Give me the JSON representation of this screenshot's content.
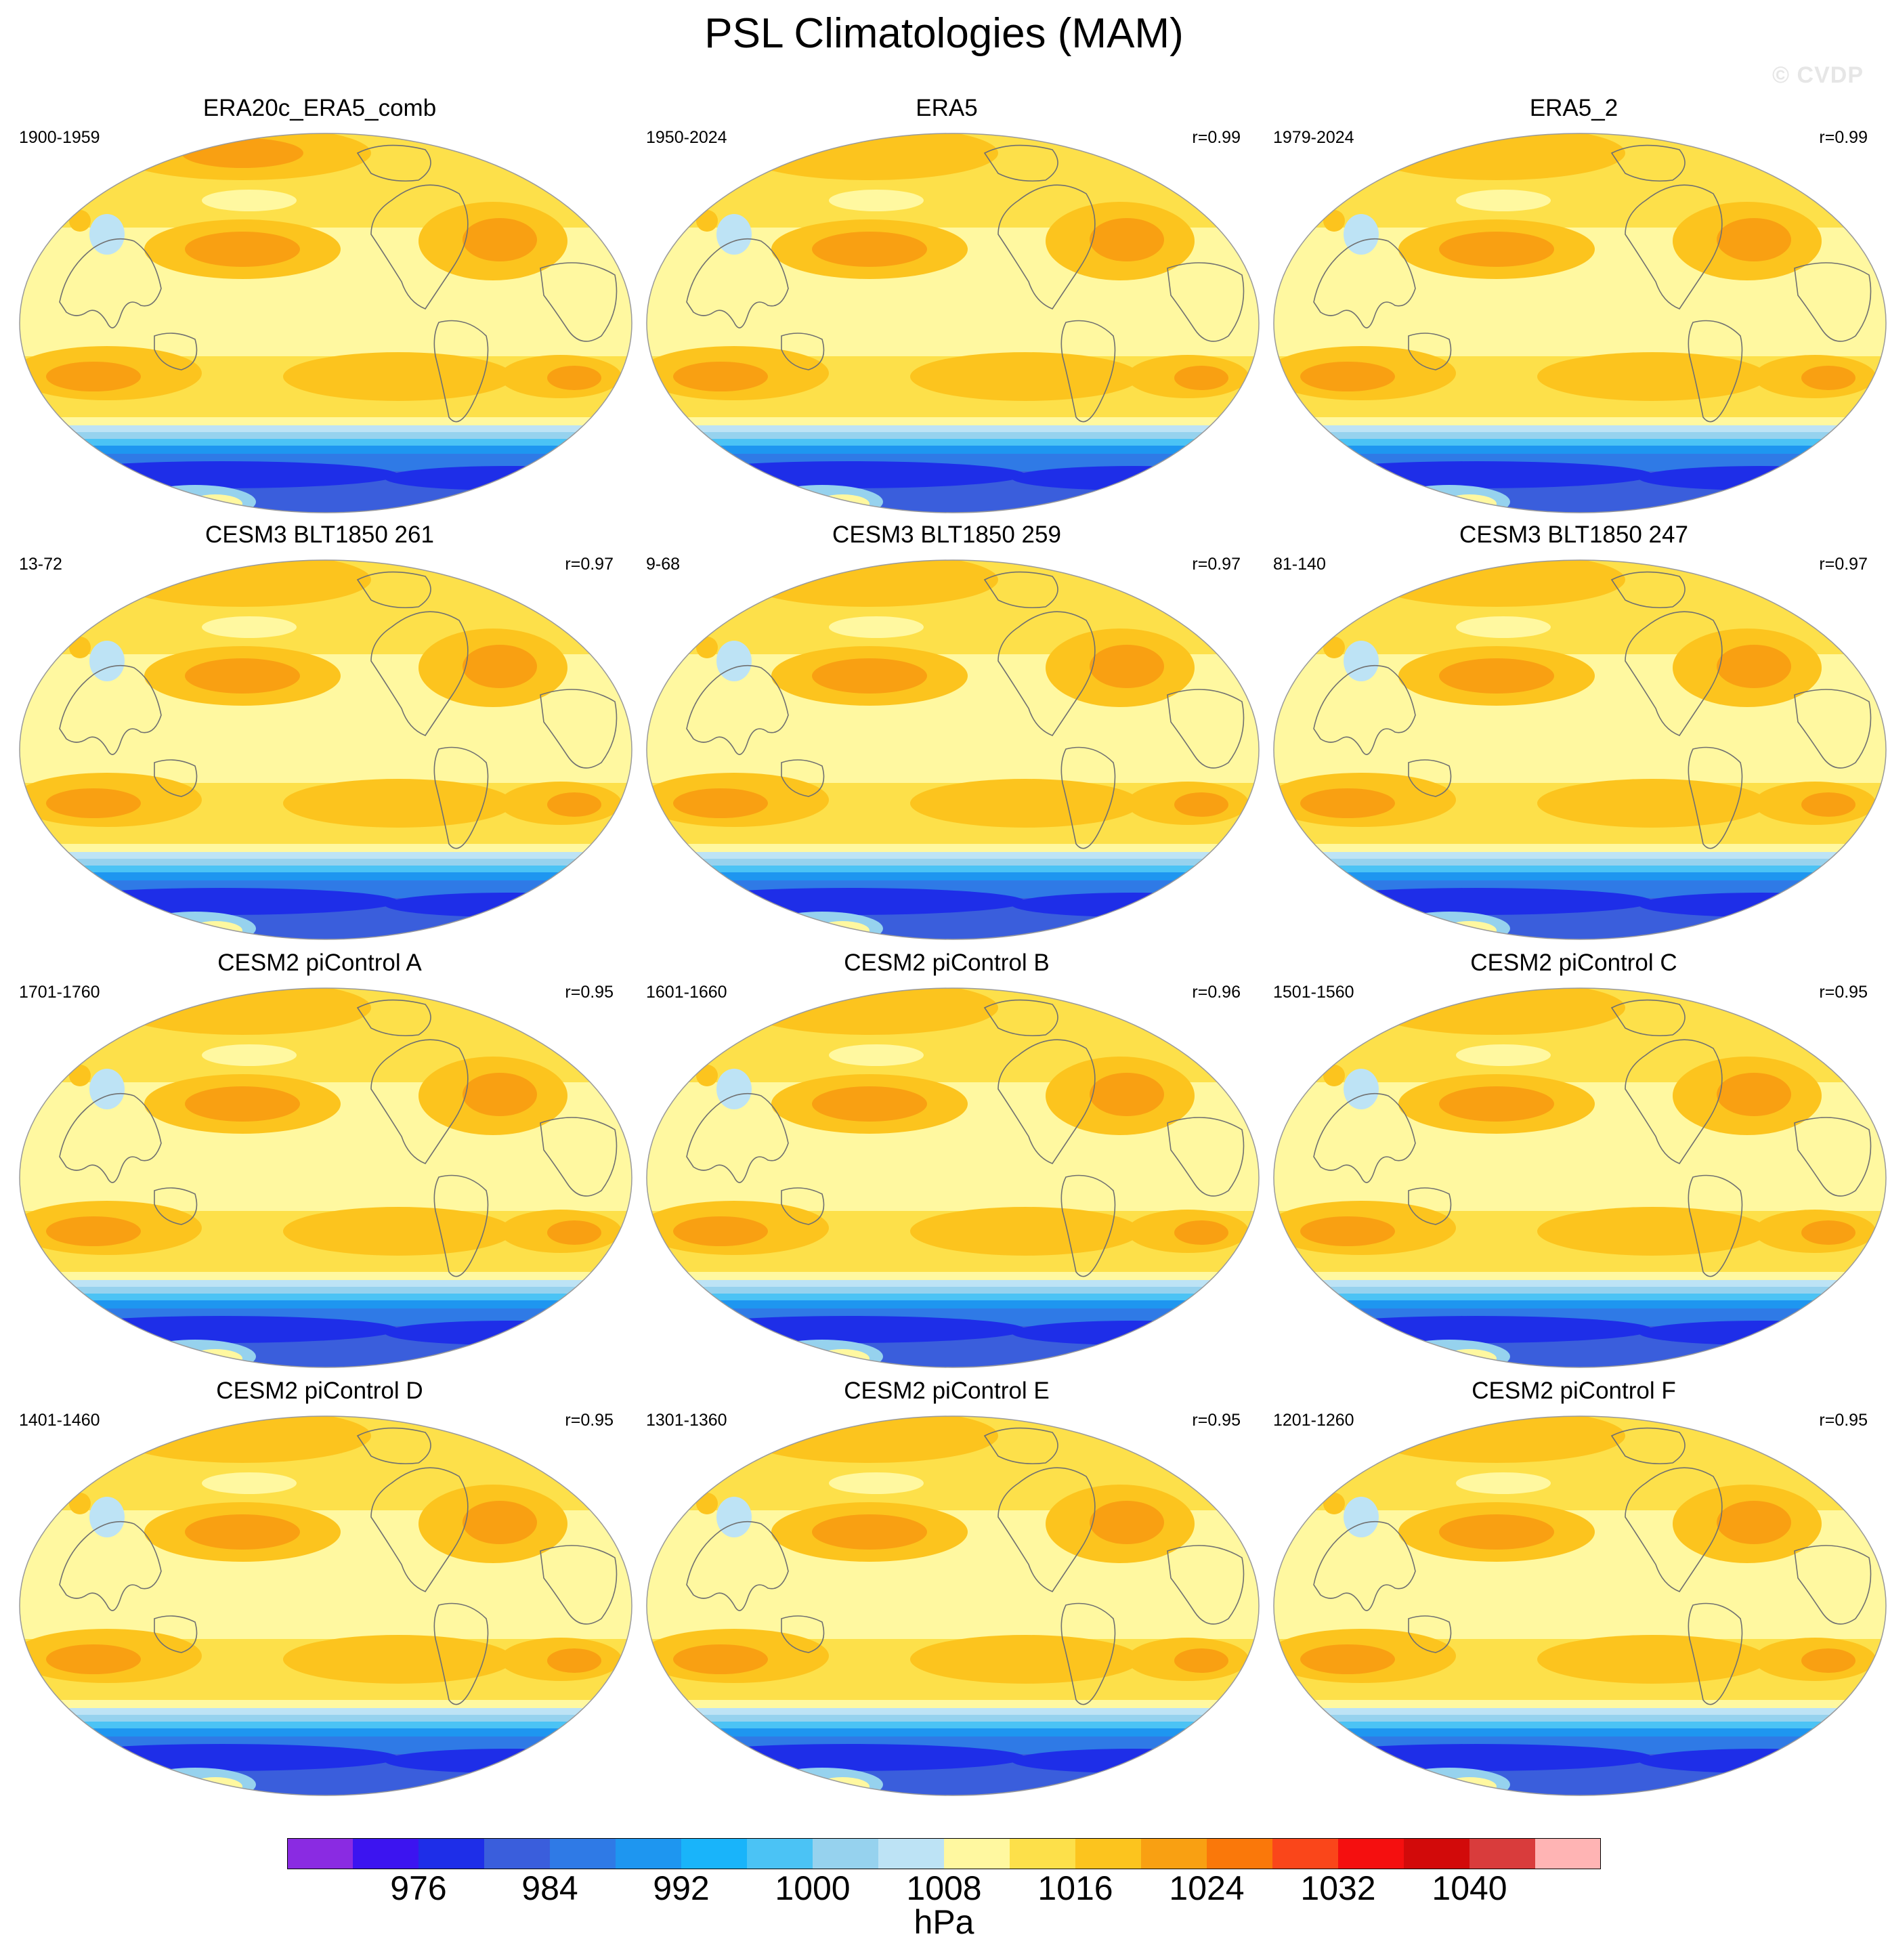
{
  "title": "PSL Climatologies (MAM)",
  "watermark": "© CVDP",
  "panels": [
    {
      "title": "ERA20c_ERA5_comb",
      "years": "1900-1959",
      "r": "",
      "anom": 1
    },
    {
      "title": "ERA5",
      "years": "1950-2024",
      "r": "r=0.99",
      "anom": 0
    },
    {
      "title": "ERA5_2",
      "years": "1979-2024",
      "r": "r=0.99",
      "anom": 0
    },
    {
      "title": "CESM3 BLT1850 261",
      "years": "13-72",
      "r": "r=0.97",
      "anom": 0
    },
    {
      "title": "CESM3 BLT1850 259",
      "years": "9-68",
      "r": "r=0.97",
      "anom": 0
    },
    {
      "title": "CESM3 BLT1850 247",
      "years": "81-140",
      "r": "r=0.97",
      "anom": 0
    },
    {
      "title": "CESM2 piControl A",
      "years": "1701-1760",
      "r": "r=0.95",
      "anom": 0
    },
    {
      "title": "CESM2 piControl B",
      "years": "1601-1660",
      "r": "r=0.96",
      "anom": 0
    },
    {
      "title": "CESM2 piControl C",
      "years": "1501-1560",
      "r": "r=0.95",
      "anom": 0
    },
    {
      "title": "CESM2 piControl D",
      "years": "1401-1460",
      "r": "r=0.95",
      "anom": 0
    },
    {
      "title": "CESM2 piControl E",
      "years": "1301-1360",
      "r": "r=0.95",
      "anom": 0
    },
    {
      "title": "CESM2 piControl F",
      "years": "1201-1260",
      "r": "r=0.95",
      "anom": 0
    }
  ],
  "colorbar": {
    "colors": [
      "#8a2be2",
      "#3c14f0",
      "#1e2ee8",
      "#3a5edc",
      "#2f7ae6",
      "#1e96f0",
      "#19b4fa",
      "#4bc3f5",
      "#96d2ee",
      "#bde3f5",
      "#fff8a0",
      "#fde04a",
      "#fcc41e",
      "#f9a012",
      "#fa780a",
      "#fa461a",
      "#f50f0f",
      "#d20a0a",
      "#d93c3c",
      "#ffb4b4"
    ],
    "labels": [
      "976",
      "984",
      "992",
      "1000",
      "1008",
      "1016",
      "1024",
      "1032",
      "1040"
    ],
    "units": "hPa"
  }
}
